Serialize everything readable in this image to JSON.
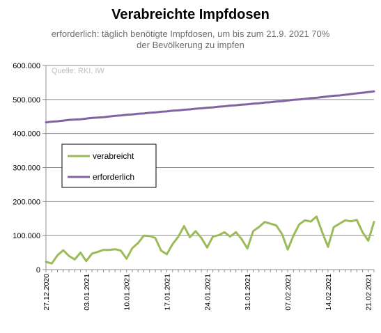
{
  "chart_data": {
    "type": "line",
    "title": "Verabreichte Impfdosen",
    "subtitle_line1": "erforderlich: täglich benötigte Impfdosen, um bis zum 21.9.  2021  70%",
    "subtitle_line2": "der Bevölkerung zu impfen",
    "source": "Quelle: RKI, IW",
    "xlabel": "",
    "ylabel": "",
    "ylim": [
      0,
      600000
    ],
    "y_ticks": [
      "0",
      "100.000",
      "200.000",
      "300.000",
      "400.000",
      "500.000",
      "600.000"
    ],
    "x_ticks": [
      {
        "index": 0,
        "label": "27.12.2020"
      },
      {
        "index": 7,
        "label": "03.01.2021"
      },
      {
        "index": 14,
        "label": "10.01.2021"
      },
      {
        "index": 21,
        "label": "17.01.2021"
      },
      {
        "index": 28,
        "label": "24.01.2021"
      },
      {
        "index": 35,
        "label": "31.01.2021"
      },
      {
        "index": 42,
        "label": "07.02.2021"
      },
      {
        "index": 49,
        "label": "14.02.2021"
      },
      {
        "index": 56,
        "label": "21.02.2021"
      }
    ],
    "x": [
      "27.12.2020",
      "28.12.2020",
      "29.12.2020",
      "30.12.2020",
      "31.12.2020",
      "01.01.2021",
      "02.01.2021",
      "03.01.2021",
      "04.01.2021",
      "05.01.2021",
      "06.01.2021",
      "07.01.2021",
      "08.01.2021",
      "09.01.2021",
      "10.01.2021",
      "11.01.2021",
      "12.01.2021",
      "13.01.2021",
      "14.01.2021",
      "15.01.2021",
      "16.01.2021",
      "17.01.2021",
      "18.01.2021",
      "19.01.2021",
      "20.01.2021",
      "21.01.2021",
      "22.01.2021",
      "23.01.2021",
      "24.01.2021",
      "25.01.2021",
      "26.01.2021",
      "27.01.2021",
      "28.01.2021",
      "29.01.2021",
      "30.01.2021",
      "31.01.2021",
      "01.02.2021",
      "02.02.2021",
      "03.02.2021",
      "04.02.2021",
      "05.02.2021",
      "06.02.2021",
      "07.02.2021",
      "08.02.2021",
      "09.02.2021",
      "10.02.2021",
      "11.02.2021",
      "12.02.2021",
      "13.02.2021",
      "14.02.2021",
      "15.02.2021",
      "16.02.2021",
      "17.02.2021",
      "18.02.2021",
      "19.02.2021",
      "20.02.2021",
      "21.02.2021",
      "22.02.2021"
    ],
    "series": [
      {
        "name": "verabreicht",
        "color": "#9bbb59",
        "values": [
          23000,
          18000,
          42000,
          57000,
          40000,
          30000,
          50000,
          25000,
          47000,
          52000,
          58000,
          58000,
          60000,
          56000,
          32000,
          63000,
          78000,
          100000,
          99000,
          93000,
          56000,
          45000,
          75000,
          97000,
          128000,
          95000,
          113000,
          93000,
          65000,
          97000,
          101000,
          110000,
          97000,
          110000,
          90000,
          62000,
          113000,
          125000,
          140000,
          135000,
          130000,
          105000,
          59000,
          100000,
          133000,
          145000,
          141000,
          156000,
          110000,
          67000,
          125000,
          135000,
          145000,
          142000,
          146000,
          110000,
          85000,
          140000
        ]
      },
      {
        "name": "erforderlich",
        "color": "#8064a2",
        "values": [
          433000,
          435000,
          436000,
          438000,
          440000,
          441000,
          442000,
          444000,
          446000,
          447000,
          448000,
          450000,
          452000,
          453000,
          455000,
          456000,
          458000,
          459000,
          461000,
          462000,
          464000,
          465000,
          467000,
          468000,
          470000,
          471000,
          473000,
          474000,
          476000,
          477000,
          479000,
          480000,
          482000,
          483000,
          485000,
          486000,
          488000,
          489000,
          491000,
          492000,
          494000,
          495000,
          497000,
          499000,
          500000,
          502000,
          504000,
          505000,
          507000,
          509000,
          511000,
          512000,
          514000,
          516000,
          518000,
          520000,
          522000,
          524000
        ]
      }
    ]
  }
}
